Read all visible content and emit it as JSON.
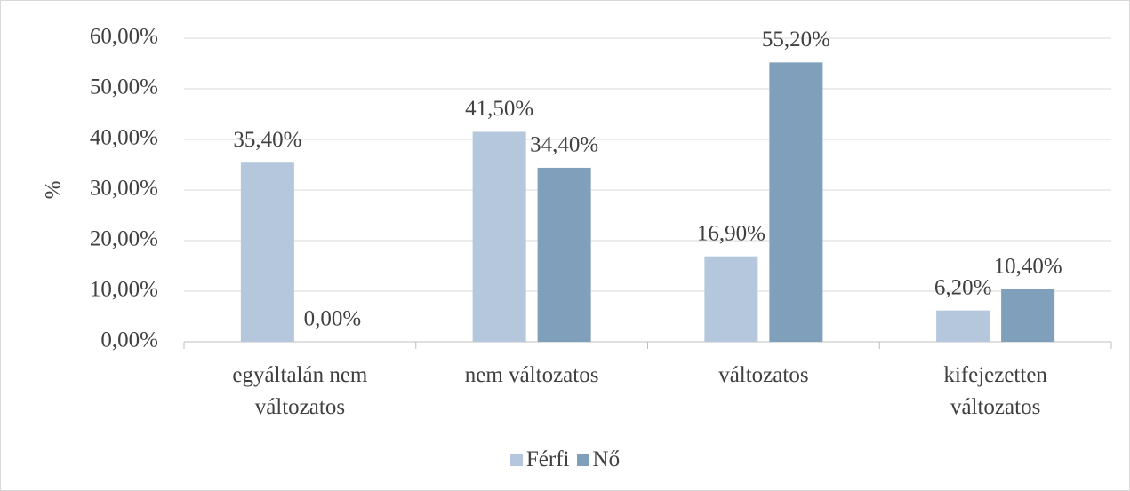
{
  "chart_data": {
    "type": "bar",
    "ylabel": "%",
    "categories": [
      "egyáltalán nem változatos",
      "nem változatos",
      "változatos",
      "kifejezetten változatos"
    ],
    "series": [
      {
        "name": "Férfi",
        "color": "#b4c7dc",
        "values": [
          35.4,
          41.5,
          16.9,
          6.2
        ],
        "value_labels": [
          "35,40%",
          "41,50%",
          "16,90%",
          "6,20%"
        ]
      },
      {
        "name": "Nő",
        "color": "#7f9fba",
        "values": [
          0,
          34.4,
          55.2,
          10.4
        ],
        "value_labels": [
          "0,00%",
          "34,40%",
          "55,20%",
          "10,40%"
        ]
      }
    ],
    "ylim": [
      0,
      60
    ],
    "yticks": [
      {
        "value": 0,
        "label": "0,00%"
      },
      {
        "value": 10,
        "label": "10,00%"
      },
      {
        "value": 20,
        "label": "20,00%"
      },
      {
        "value": 30,
        "label": "30,00%"
      },
      {
        "value": 40,
        "label": "40,00%"
      },
      {
        "value": 50,
        "label": "50,00%"
      },
      {
        "value": 60,
        "label": "60,00%"
      }
    ],
    "grid": true,
    "legend": "bottom"
  }
}
